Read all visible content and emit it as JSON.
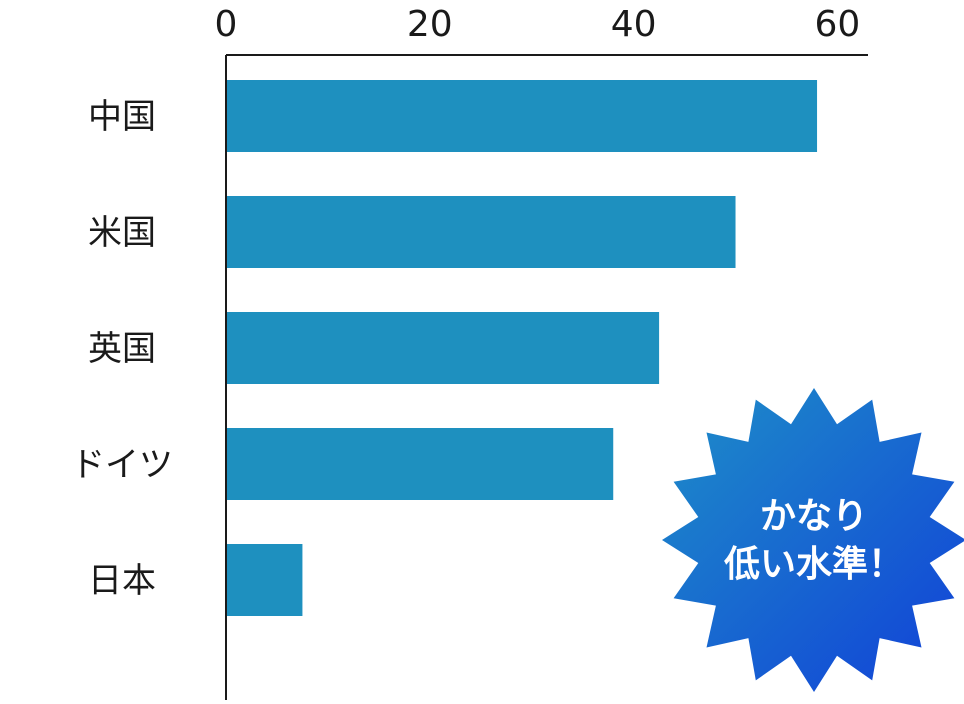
{
  "chart_data": {
    "type": "bar",
    "orientation": "horizontal",
    "categories": [
      "中国",
      "米国",
      "英国",
      "ドイツ",
      "日本"
    ],
    "values": [
      58,
      50,
      42.5,
      38,
      7.5
    ],
    "xlim": [
      0,
      63
    ],
    "xticks": [
      0,
      20,
      40,
      60
    ],
    "tick_labels": [
      "0",
      "20",
      "40",
      "60"
    ],
    "axis_position": "top",
    "grid": false,
    "legend": "none",
    "bar_color": "#1e90bf",
    "axis_color": "#1a1a1a"
  },
  "callout": {
    "shape": "starburst",
    "lines": [
      "かなり",
      "低い水準！"
    ],
    "gradient": [
      "#1e8fc8",
      "#1140d8"
    ],
    "text_color": "#ffffff"
  }
}
